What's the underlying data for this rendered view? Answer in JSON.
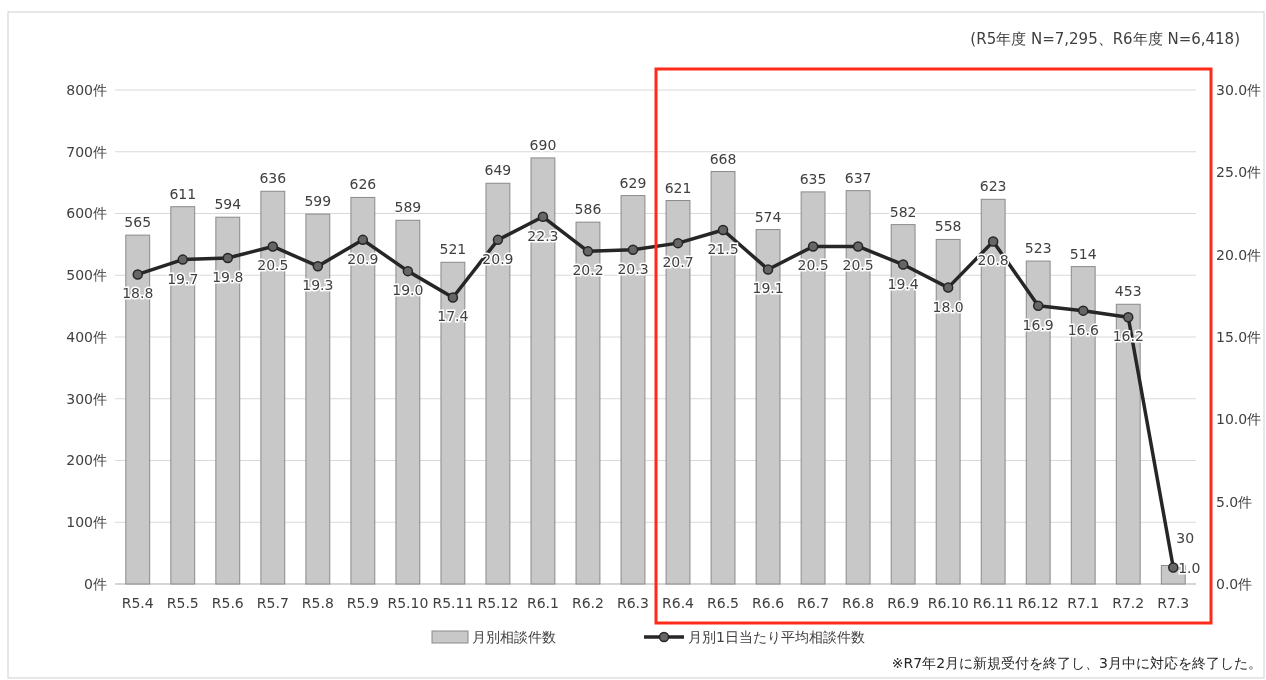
{
  "chart_data": {
    "type": "bar",
    "categories": [
      "R5.4",
      "R5.5",
      "R5.6",
      "R5.7",
      "R5.8",
      "R5.9",
      "R5.10",
      "R5.11",
      "R5.12",
      "R6.1",
      "R6.2",
      "R6.3",
      "R6.4",
      "R6.5",
      "R6.6",
      "R6.7",
      "R6.8",
      "R6.9",
      "R6.10",
      "R6.11",
      "R6.12",
      "R7.1",
      "R7.2",
      "R7.3"
    ],
    "series": [
      {
        "name": "月別相談件数",
        "color": "#c8c8c8",
        "values": [
          565,
          611,
          594,
          636,
          599,
          626,
          589,
          521,
          649,
          690,
          586,
          629,
          621,
          668,
          574,
          635,
          637,
          582,
          558,
          623,
          523,
          514,
          453,
          30
        ],
        "value_labels": [
          "565",
          "611",
          "594",
          "636",
          "599",
          "626",
          "589",
          "521",
          "649",
          "690",
          "586",
          "629",
          "621",
          "668",
          "574",
          "635",
          "637",
          "582",
          "558",
          "623",
          "523",
          "514",
          "453",
          "30"
        ]
      },
      {
        "name": "月別1日当たり平均相談件数",
        "type": "line",
        "axis": "y2",
        "color": "#262626",
        "marker": "circle",
        "values": [
          18.8,
          19.7,
          19.8,
          20.5,
          19.3,
          20.9,
          19.0,
          17.4,
          20.9,
          22.3,
          20.2,
          20.3,
          20.7,
          21.5,
          19.1,
          20.5,
          20.5,
          19.4,
          18.0,
          20.8,
          16.9,
          16.6,
          16.2,
          1.0
        ],
        "value_labels": [
          "18.8",
          "19.7",
          "19.8",
          "20.5",
          "19.3",
          "20.9",
          "19.0",
          "17.4",
          "20.9",
          "22.3",
          "20.2",
          "20.3",
          "20.7",
          "21.5",
          "19.1",
          "20.5",
          "20.5",
          "19.4",
          "18.0",
          "20.8",
          "16.9",
          "16.6",
          "16.2",
          "1.0"
        ]
      }
    ],
    "ylim": [
      0,
      800
    ],
    "yticks": [
      {
        "value": 0,
        "label": "0件"
      },
      {
        "value": 100,
        "label": "100件"
      },
      {
        "value": 200,
        "label": "200件"
      },
      {
        "value": 300,
        "label": "300件"
      },
      {
        "value": 400,
        "label": "400件"
      },
      {
        "value": 500,
        "label": "500件"
      },
      {
        "value": 600,
        "label": "600件"
      },
      {
        "value": 700,
        "label": "700件"
      },
      {
        "value": 800,
        "label": "800件"
      }
    ],
    "y2lim": [
      0,
      30
    ],
    "y2ticks": [
      {
        "value": 0,
        "label": "0.0件"
      },
      {
        "value": 5,
        "label": "5.0件"
      },
      {
        "value": 10,
        "label": "10.0件"
      },
      {
        "value": 15,
        "label": "15.0件"
      },
      {
        "value": 20,
        "label": "20.0件"
      },
      {
        "value": 25,
        "label": "25.0件"
      },
      {
        "value": 30,
        "label": "30.0件"
      }
    ],
    "grid": "y",
    "legend": "bottom",
    "annotations": [
      "(R5年度 N=7,295、R6年度 N=6,418)",
      "※R7年2月に新規受付を終了し、3月中に対応を終了した。"
    ]
  }
}
